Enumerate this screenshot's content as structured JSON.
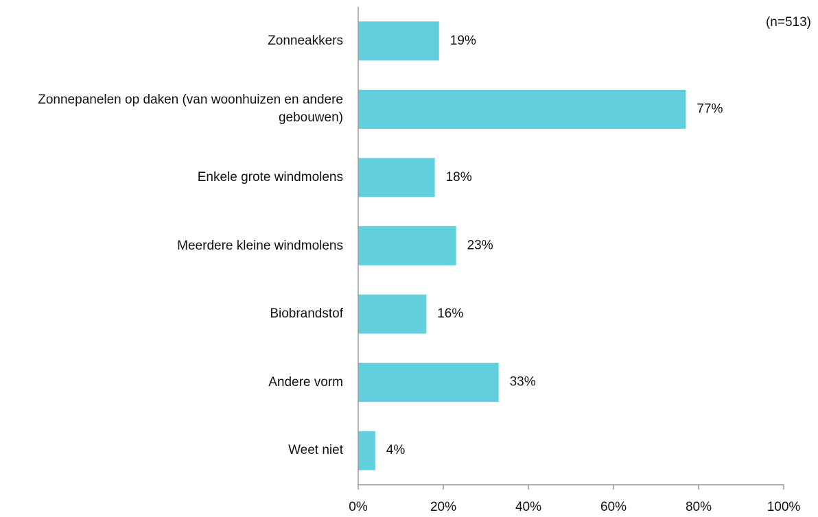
{
  "chart_data": {
    "type": "hbar",
    "annotation": "(n=513)",
    "categories": [
      "Zonneakkers",
      "Zonnepanelen op daken (van woonhuizen en andere gebouwen)",
      "Enkele grote windmolens",
      "Meerdere kleine windmolens",
      "Biobrandstof",
      "Andere vorm",
      "Weet niet"
    ],
    "values": [
      19,
      77,
      18,
      23,
      16,
      33,
      4
    ],
    "value_labels": [
      "19%",
      "77%",
      "18%",
      "23%",
      "16%",
      "33%",
      "4%"
    ],
    "color": "#62cfdf",
    "xlim": [
      0,
      100
    ],
    "xticks": [
      {
        "value": 0,
        "label": "0%"
      },
      {
        "value": 20,
        "label": "20%"
      },
      {
        "value": 40,
        "label": "40%"
      },
      {
        "value": 60,
        "label": "60%"
      },
      {
        "value": 80,
        "label": "80%"
      },
      {
        "value": 100,
        "label": "100%"
      }
    ]
  }
}
